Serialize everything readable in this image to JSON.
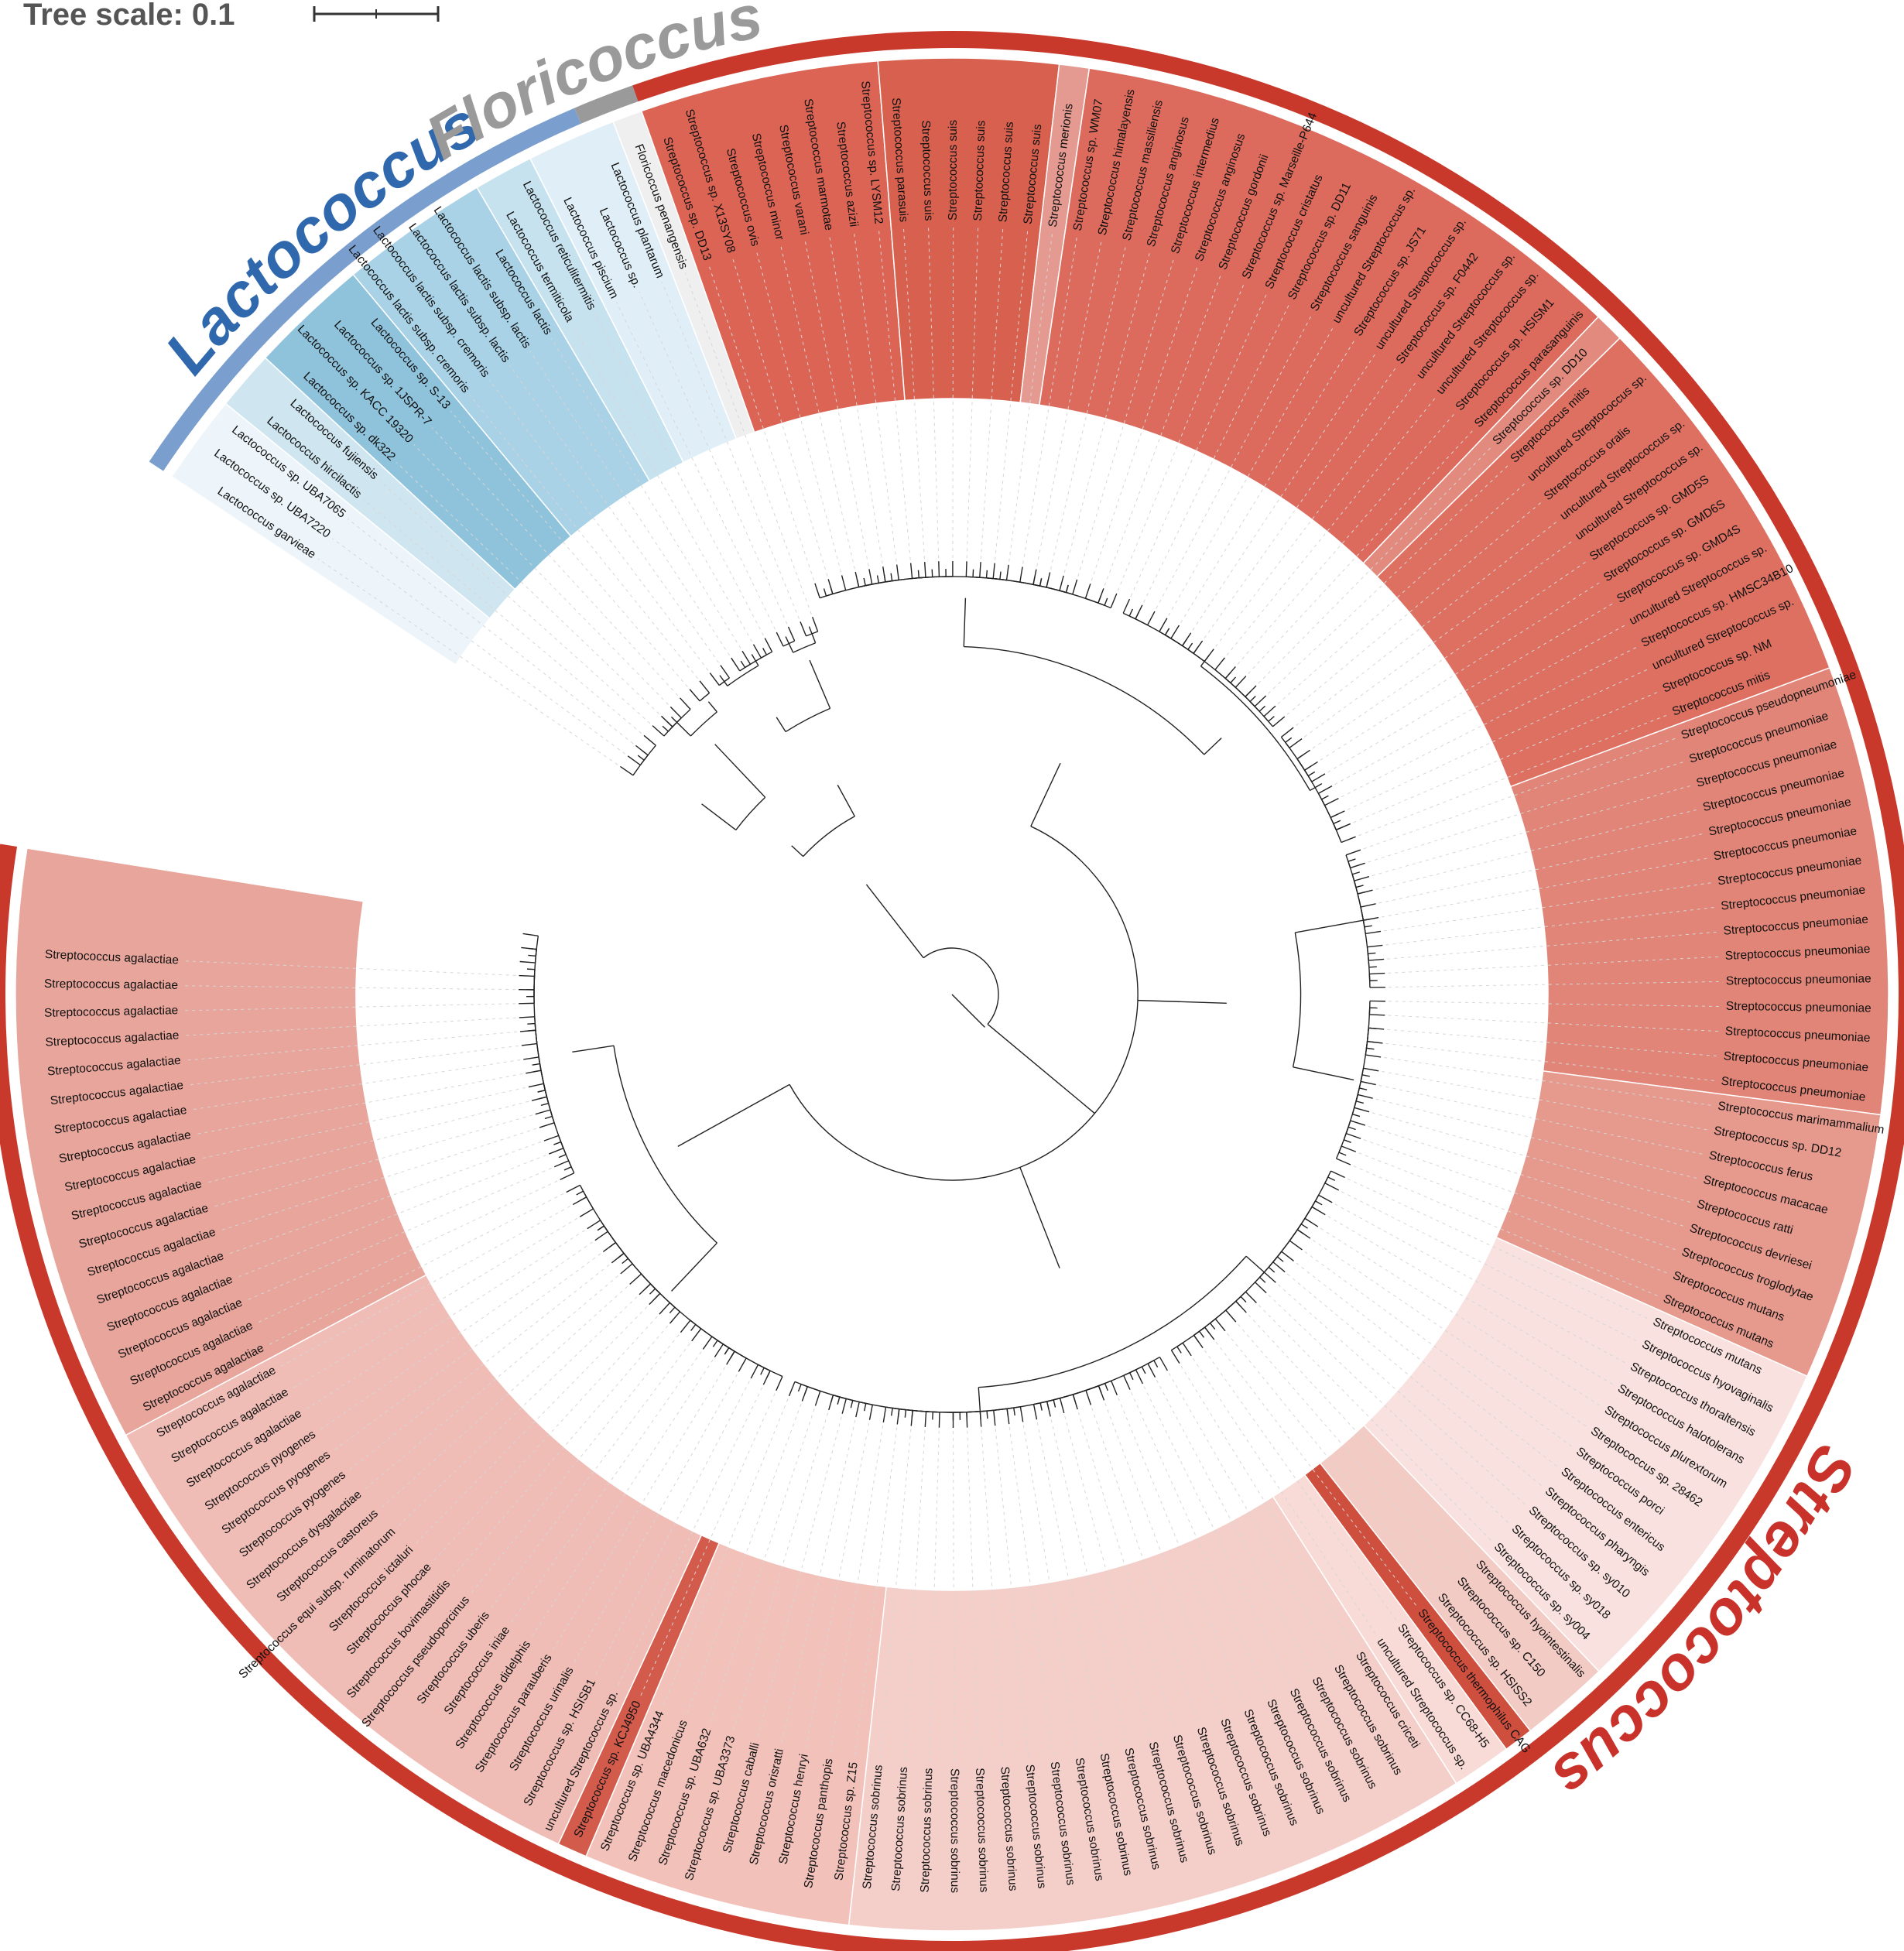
{
  "scale": {
    "title": "Tree scale: 0.1"
  },
  "clades": [
    {
      "name": "Lactococcus",
      "color": "#2f68ad",
      "arc_color": "#7a9fcf",
      "from": 0,
      "to": 17
    },
    {
      "name": "Floricoccus",
      "color": "#9a9a9a",
      "arc_color": "#9a9a9a",
      "from": 18,
      "to": 19
    },
    {
      "name": "Streptococcus",
      "color": "#c8322a",
      "arc_color": "#c8392b",
      "from": 20,
      "to": 180
    }
  ],
  "leaves": [
    "Lactococcus garvieae",
    "Lactococcus sp. UBA7220",
    "Lactococcus sp. UBA7065",
    "Lactococcus hircilactis",
    "Lactococcus fujiensis",
    "Lactococcus sp. dk322",
    "Lactococcus sp. KACC 19320",
    "Lactococcus sp. 1JSPR-7",
    "Lactococcus sp. S-13",
    "Lactococcus lactis subsp. cremoris",
    "Lactococcus lactis subsp. cremoris",
    "Lactococcus lactis subsp. lactis",
    "Lactococcus lactis subsp. lactis",
    "Lactococcus lactis",
    "Lactococcus termiticola",
    "Lactococcus reticulitermitis",
    "Lactococcus piscium",
    "Lactococcus sp.",
    "Lactococcus plantarum",
    "Floricoccus penangensis",
    "Streptococcus sp. DD13",
    "Streptococcus sp. X13SY08",
    "Streptococcus ovis",
    "Streptococcus minor",
    "Streptococcus varani",
    "Streptococcus marmotae",
    "Streptococcus azizii",
    "Streptococcus sp. LYSM12",
    "Streptococcus parasuis",
    "Streptococcus suis",
    "Streptococcus suis",
    "Streptococcus suis",
    "Streptococcus suis",
    "Streptococcus suis",
    "Streptococcus merionis",
    "Streptococcus sp. WM07",
    "Streptococcus himalayensis",
    "Streptococcus massiliensis",
    "Streptococcus anginosus",
    "Streptococcus intermedius",
    "Streptococcus anginosus",
    "Streptococcus gordonii",
    "Streptococcus sp. Marseille-P644",
    "Streptococcus cristatus",
    "Streptococcus sp. DD11",
    "Streptococcus sanguinis",
    "uncultured Streptococcus sp.",
    "Streptococcus sp. JS71",
    "uncultured Streptococcus sp.",
    "Streptococcus sp. F0442",
    "uncultured Streptococcus sp.",
    "uncultured Streptococcus sp.",
    "Streptococcus sp. HSISM1",
    "Streptococcus parasanguinis",
    "Streptococcus sp. DD10",
    "Streptococcus mitis",
    "uncultured Streptococcus sp.",
    "Streptococcus oralis",
    "uncultured Streptococcus sp.",
    "uncultured Streptococcus sp.",
    "Streptococcus sp. GMD5S",
    "Streptococcus sp. GMD6S",
    "Streptococcus sp. GMD4S",
    "uncultured Streptococcus sp.",
    "Streptococcus sp. HMSC34B10",
    "uncultured Streptococcus sp.",
    "Streptococcus sp. NM",
    "Streptococcus mitis",
    "Streptococcus pseudopneumoniae",
    "Streptococcus pneumoniae",
    "Streptococcus pneumoniae",
    "Streptococcus pneumoniae",
    "Streptococcus pneumoniae",
    "Streptococcus pneumoniae",
    "Streptococcus pneumoniae",
    "Streptococcus pneumoniae",
    "Streptococcus pneumoniae",
    "Streptococcus pneumoniae",
    "Streptococcus pneumoniae",
    "Streptococcus pneumoniae",
    "Streptococcus pneumoniae",
    "Streptococcus pneumoniae",
    "Streptococcus pneumoniae",
    "Streptococcus marimammalium",
    "Streptococcus sp. DD12",
    "Streptococcus ferus",
    "Streptococcus macacae",
    "Streptococcus ratti",
    "Streptococcus devriesei",
    "Streptococcus troglodytae",
    "Streptococcus mutans",
    "Streptococcus mutans",
    "Streptococcus mutans",
    "Streptococcus hyovaginalis",
    "Streptococcus thoraltensis",
    "Streptococcus halotolerans",
    "Streptococcus plurextorum",
    "Streptococcus sp. 28462",
    "Streptococcus porci",
    "Streptococcus entericus",
    "Streptococcus pharyngis",
    "Streptococcus sp. sy010",
    "Streptococcus sp. sy018",
    "Streptococcus sp. sy004",
    "Streptococcus hyointestinalis",
    "Streptococcus sp. C150",
    "Streptococcus sp. HSISS2",
    "Streptococcus thermophilus CAG",
    "Streptococcus sp. CC68-H5",
    "uncultured Streptococcus sp.",
    "Streptococcus criceti",
    "Streptococcus sobrinus",
    "Streptococcus sobrinus",
    "Streptococcus sobrinus",
    "Streptococcus sobrinus",
    "Streptococcus sobrinus",
    "Streptococcus sobrinus",
    "Streptococcus sobrinus",
    "Streptococcus sobrinus",
    "Streptococcus sobrinus",
    "Streptococcus sobrinus",
    "Streptococcus sobrinus",
    "Streptococcus sobrinus",
    "Streptococcus sobrinus",
    "Streptococcus sobrinus",
    "Streptococcus sobrinus",
    "Streptococcus sobrinus",
    "Streptococcus sobrinus",
    "Streptococcus sobrinus",
    "Streptococcus sobrinus",
    "Streptococcus sobrinus",
    "Streptococcus sp. Z15",
    "Streptococcus panthopis",
    "Streptococcus henryi",
    "Streptococcus orisratti",
    "Streptococcus caballi",
    "Streptococcus sp. UBA3373",
    "Streptococcus sp. UBA632",
    "Streptococcus macedonicus",
    "Streptococcus sp. UBA4344",
    "Streptococcus sp. KCJ4950",
    "uncultured Streptococcus sp.",
    "Streptococcus sp. HSISB1",
    "Streptococcus urinalis",
    "Streptococcus parauberis",
    "Streptococcus didelphis",
    "Streptococcus iniae",
    "Streptococcus uberis",
    "Streptococcus pseudoporcinus",
    "Streptococcus bovimastitidis",
    "Streptococcus phocae",
    "Streptococcus ictaluri",
    "Streptococcus equi subsp. ruminatorum",
    "Streptococcus castoreus",
    "Streptococcus dysgalactiae",
    "Streptococcus pyogenes",
    "Streptococcus pyogenes",
    "Streptococcus pyogenes",
    "Streptococcus agalactiae",
    "Streptococcus agalactiae",
    "Streptococcus agalactiae",
    "Streptococcus agalactiae",
    "Streptococcus agalactiae",
    "Streptococcus agalactiae",
    "Streptococcus agalactiae",
    "Streptococcus agalactiae",
    "Streptococcus agalactiae",
    "Streptococcus agalactiae",
    "Streptococcus agalactiae",
    "Streptococcus agalactiae",
    "Streptococcus agalactiae",
    "Streptococcus agalactiae",
    "Streptococcus agalactiae",
    "Streptococcus agalactiae",
    "Streptococcus agalactiae",
    "Streptococcus agalactiae",
    "Streptococcus agalactiae",
    "Streptococcus agalactiae"
  ],
  "bands": [
    {
      "from": 0,
      "to": 2,
      "color": "#edf5fa"
    },
    {
      "from": 3,
      "to": 4,
      "color": "#cfe6f1"
    },
    {
      "from": 5,
      "to": 8,
      "color": "#8fc3dc"
    },
    {
      "from": 9,
      "to": 13,
      "color": "#a9d2e6"
    },
    {
      "from": 14,
      "to": 15,
      "color": "#c7e2ef"
    },
    {
      "from": 16,
      "to": 18,
      "color": "#e0eff7"
    },
    {
      "from": 19,
      "to": 19,
      "color": "#efefef"
    },
    {
      "from": 20,
      "to": 27,
      "color": "#db6455"
    },
    {
      "from": 28,
      "to": 33,
      "color": "#d8604f"
    },
    {
      "from": 34,
      "to": 34,
      "color": "#e49a90"
    },
    {
      "from": 35,
      "to": 53,
      "color": "#dc6b5d"
    },
    {
      "from": 54,
      "to": 54,
      "color": "#e28a7e"
    },
    {
      "from": 55,
      "to": 67,
      "color": "#de7062"
    },
    {
      "from": 68,
      "to": 82,
      "color": "#e08577"
    },
    {
      "from": 83,
      "to": 91,
      "color": "#e6998d"
    },
    {
      "from": 92,
      "to": 103,
      "color": "#f8e1de"
    },
    {
      "from": 104,
      "to": 106,
      "color": "#f3cbc5"
    },
    {
      "from": 107,
      "to": 107,
      "color": "#cf4f3f"
    },
    {
      "from": 108,
      "to": 109,
      "color": "#f8dad6"
    },
    {
      "from": 110,
      "to": 130,
      "color": "#f4cfca"
    },
    {
      "from": 131,
      "to": 139,
      "color": "#f1c1ba"
    },
    {
      "from": 140,
      "to": 140,
      "color": "#d35b4c"
    },
    {
      "from": 141,
      "to": 160,
      "color": "#efbdb6"
    },
    {
      "from": 161,
      "to": 180,
      "color": "#e8a59b"
    }
  ]
}
